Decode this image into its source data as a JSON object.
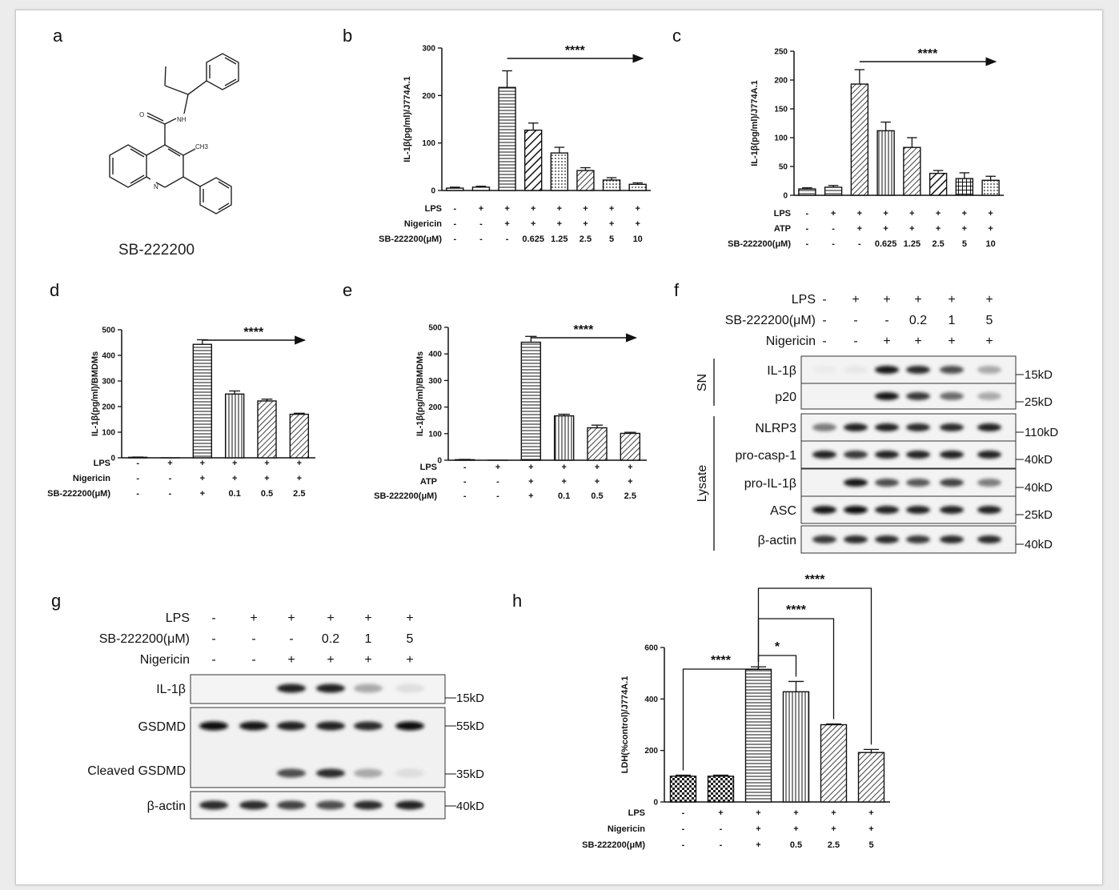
{
  "panel_letters": [
    "a",
    "b",
    "c",
    "d",
    "e",
    "f",
    "g",
    "h"
  ],
  "compound": {
    "name": "SB-222200",
    "atoms": {
      "nh": "NH",
      "o": "O",
      "ch3": "CH3",
      "n": "N"
    }
  },
  "chart_data": [
    {
      "panel": "b",
      "type": "bar",
      "ylabel": "IL-1β(pg/ml)/J774A.1",
      "ylim": [
        0,
        300
      ],
      "yticks": [
        0,
        100,
        200,
        300
      ],
      "values": [
        5,
        7,
        217,
        127,
        79,
        42,
        22,
        13
      ],
      "errors": [
        2,
        2,
        35,
        15,
        12,
        6,
        5,
        3
      ],
      "patterns": [
        "solid",
        "solid",
        "hlines",
        "diag-thick",
        "dots",
        "diag",
        "dots",
        "dots"
      ],
      "conditions": [
        {
          "name": "LPS",
          "values": [
            "-",
            "+",
            "+",
            "+",
            "+",
            "+",
            "+",
            "+"
          ]
        },
        {
          "name": "Nigericin",
          "values": [
            "-",
            "-",
            "+",
            "+",
            "+",
            "+",
            "+",
            "+"
          ]
        },
        {
          "name": "SB-222200(μM)",
          "values": [
            "-",
            "-",
            "-",
            "0.625",
            "1.25",
            "2.5",
            "5",
            "10"
          ]
        }
      ],
      "significance": {
        "label": "****",
        "type": "arrow",
        "from": 2,
        "to": 7
      }
    },
    {
      "panel": "c",
      "type": "bar",
      "ylabel": "IL-1β(pg/ml)/J774A.1",
      "ylim": [
        0,
        250
      ],
      "yticks": [
        0,
        50,
        100,
        150,
        200,
        250
      ],
      "values": [
        11,
        14,
        193,
        112,
        83,
        38,
        29,
        26
      ],
      "errors": [
        2,
        3,
        25,
        15,
        17,
        5,
        10,
        7
      ],
      "patterns": [
        "hlines",
        "hlines",
        "diag",
        "vlines",
        "diag",
        "diag-thick",
        "grid",
        "dots"
      ],
      "conditions": [
        {
          "name": "LPS",
          "values": [
            "-",
            "+",
            "+",
            "+",
            "+",
            "+",
            "+",
            "+"
          ]
        },
        {
          "name": "ATP",
          "values": [
            "-",
            "-",
            "+",
            "+",
            "+",
            "+",
            "+",
            "+"
          ]
        },
        {
          "name": "SB-222200(μM)",
          "values": [
            "-",
            "-",
            "-",
            "0.625",
            "1.25",
            "2.5",
            "5",
            "10"
          ]
        }
      ],
      "significance": {
        "label": "****",
        "type": "arrow",
        "from": 2,
        "to": 7
      }
    },
    {
      "panel": "d",
      "type": "bar",
      "ylabel": "IL-1β(pg/ml)/BMDMs",
      "ylim": [
        0,
        500
      ],
      "yticks": [
        0,
        100,
        200,
        300,
        400,
        500
      ],
      "values": [
        2,
        0,
        443,
        249,
        222,
        170
      ],
      "errors": [
        1,
        0,
        18,
        12,
        7,
        4
      ],
      "patterns": [
        "hlines",
        "hlines",
        "hlines",
        "vlines",
        "diag",
        "diag"
      ],
      "conditions": [
        {
          "name": "LPS",
          "values": [
            "-",
            "+",
            "+",
            "+",
            "+",
            "+"
          ]
        },
        {
          "name": "Nigericin",
          "values": [
            "-",
            "-",
            "+",
            "+",
            "+",
            "+"
          ]
        },
        {
          "name": "SB-222200(μM)",
          "values": [
            "-",
            "-",
            "+",
            "0.1",
            "0.5",
            "2.5"
          ]
        }
      ],
      "significance": {
        "label": "****",
        "type": "arrow",
        "from": 2,
        "to": 5
      }
    },
    {
      "panel": "e",
      "type": "bar",
      "ylabel": "IL-1β(pg/ml)/BMDMs",
      "ylim": [
        0,
        500
      ],
      "yticks": [
        0,
        100,
        200,
        300,
        400,
        500
      ],
      "values": [
        2,
        0,
        444,
        167,
        122,
        101
      ],
      "errors": [
        1,
        0,
        22,
        6,
        10,
        4
      ],
      "patterns": [
        "hlines",
        "hlines",
        "hlines",
        "vlines",
        "diag",
        "diag"
      ],
      "conditions": [
        {
          "name": "LPS",
          "values": [
            "-",
            "+",
            "+",
            "+",
            "+",
            "+"
          ]
        },
        {
          "name": "ATP",
          "values": [
            "-",
            "-",
            "+",
            "+",
            "+",
            "+"
          ]
        },
        {
          "name": "SB-222200(μM)",
          "values": [
            "-",
            "-",
            "+",
            "0.1",
            "0.5",
            "2.5"
          ]
        }
      ],
      "significance": {
        "label": "****",
        "type": "arrow",
        "from": 2,
        "to": 5
      }
    },
    {
      "panel": "h",
      "type": "bar",
      "ylabel": "LDH(%control)/J774A.1",
      "ylim": [
        0,
        600
      ],
      "yticks": [
        0,
        200,
        400,
        600
      ],
      "values": [
        100,
        100,
        515,
        428,
        300,
        192
      ],
      "errors": [
        4,
        4,
        10,
        40,
        3,
        12
      ],
      "patterns": [
        "check",
        "check",
        "hlines",
        "vlines",
        "diag",
        "diag"
      ],
      "conditions": [
        {
          "name": "LPS",
          "values": [
            "-",
            "+",
            "+",
            "+",
            "+",
            "+"
          ]
        },
        {
          "name": "Nigericin",
          "values": [
            "-",
            "-",
            "+",
            "+",
            "+",
            "+"
          ]
        },
        {
          "name": "SB-222200(μM)",
          "values": [
            "-",
            "-",
            "+",
            "0.5",
            "2.5",
            "5"
          ]
        }
      ],
      "comparisons": [
        {
          "a": 0,
          "b": 2,
          "label": "****"
        },
        {
          "a": 2,
          "b": 3,
          "label": "*"
        },
        {
          "a": 2,
          "b": 4,
          "label": "****"
        },
        {
          "a": 2,
          "b": 5,
          "label": "****"
        }
      ]
    }
  ],
  "blots": {
    "f": {
      "conditions": [
        {
          "name": "LPS",
          "values": [
            "-",
            "+",
            "+",
            "+",
            "+",
            "+"
          ]
        },
        {
          "name": "SB-222200(μM)",
          "values": [
            "-",
            "-",
            "-",
            "0.2",
            "1",
            "5"
          ]
        },
        {
          "name": "Nigericin",
          "values": [
            "-",
            "-",
            "+",
            "+",
            "+",
            "+"
          ]
        }
      ],
      "groups": [
        "SN",
        "Lysate"
      ],
      "rows": [
        {
          "label": "IL-1β",
          "mw": "15kD",
          "group": "SN",
          "intensity": [
            0.05,
            0.08,
            0.95,
            0.85,
            0.7,
            0.4
          ]
        },
        {
          "label": "p20",
          "mw": "25kD",
          "group": "SN",
          "intensity": [
            0.0,
            0.0,
            0.95,
            0.8,
            0.6,
            0.4
          ]
        },
        {
          "label": "NLRP3",
          "mw": "110kD",
          "group": "Lysate",
          "intensity": [
            0.55,
            0.9,
            0.9,
            0.85,
            0.85,
            0.9
          ]
        },
        {
          "label": "pro-casp-1",
          "mw": "40kD",
          "group": "Lysate",
          "intensity": [
            0.9,
            0.8,
            0.9,
            0.9,
            0.9,
            0.9
          ]
        },
        {
          "label": "pro-IL-1β",
          "mw": "40kD",
          "group": "Lysate",
          "intensity": [
            0.0,
            0.95,
            0.7,
            0.65,
            0.75,
            0.55
          ]
        },
        {
          "label": "ASC",
          "mw": "25kD",
          "group": "Lysate",
          "intensity": [
            0.95,
            1.0,
            0.9,
            0.9,
            0.9,
            0.9
          ]
        },
        {
          "label": "β-actin",
          "mw": "40kD",
          "group": "Lysate",
          "intensity": [
            0.8,
            0.85,
            0.85,
            0.8,
            0.85,
            0.85
          ]
        }
      ]
    },
    "g": {
      "conditions": [
        {
          "name": "LPS",
          "values": [
            "-",
            "+",
            "+",
            "+",
            "+",
            "+"
          ]
        },
        {
          "name": "SB-222200(μM)",
          "values": [
            "-",
            "-",
            "-",
            "0.2",
            "1",
            "5"
          ]
        },
        {
          "name": "Nigericin",
          "values": [
            "-",
            "-",
            "+",
            "+",
            "+",
            "+"
          ]
        }
      ],
      "rows": [
        {
          "label": "IL-1β",
          "mw": "15kD",
          "intensity": [
            0.0,
            0.0,
            0.9,
            0.9,
            0.4,
            0.15
          ]
        },
        {
          "label": "GSDMD",
          "mw": "55kD",
          "intensity": [
            1.0,
            0.95,
            0.9,
            0.9,
            0.85,
            1.0
          ]
        },
        {
          "label": "Cleaved GSDMD",
          "mw": "35kD",
          "intensity": [
            0.0,
            0.0,
            0.7,
            0.85,
            0.4,
            0.15
          ]
        },
        {
          "label": "β-actin",
          "mw": "40kD",
          "intensity": [
            0.85,
            0.85,
            0.75,
            0.7,
            0.85,
            0.9
          ]
        }
      ]
    }
  }
}
